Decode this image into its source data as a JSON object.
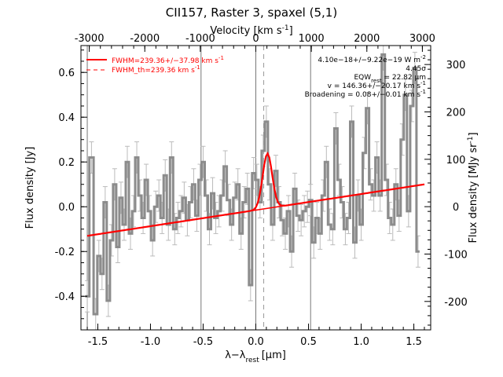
{
  "chart_data": {
    "type": "line",
    "title": "CII157, Raster 3, spaxel (5,1)",
    "xlabel_main": "λ−λ",
    "xlabel_sub": "rest",
    "xlabel_unit": "[μm]",
    "ylabel_left": "Flux density [Jy]",
    "ylabel_right": "Flux density [MJy sr",
    "ylabel_right_sup": "-1",
    "ylabel_right_end": "]",
    "xlabel_top": "Velocity [km s",
    "xlabel_top_sup": "-1",
    "xlabel_top_end": "]",
    "xlim": [
      -1.66,
      1.66
    ],
    "ylim": [
      -0.55,
      0.72
    ],
    "ylim_right": [
      -260,
      340
    ],
    "vlim_top": [
      -3150,
      3150
    ],
    "x_ticks": [
      "-1.5",
      "-1.0",
      "-0.5",
      "0.0",
      "0.5",
      "1.0",
      "1.5"
    ],
    "x_tick_values": [
      -1.5,
      -1.0,
      -0.5,
      0.0,
      0.5,
      1.0,
      1.5
    ],
    "y_ticks": [
      "-0.4",
      "-0.2",
      "0.0",
      "0.2",
      "0.4",
      "0.6"
    ],
    "y_tick_values": [
      -0.4,
      -0.2,
      0.0,
      0.2,
      0.4,
      0.6
    ],
    "yr_ticks": [
      "-200",
      "-100",
      "0",
      "100",
      "200",
      "300"
    ],
    "yr_tick_values": [
      -200,
      -100,
      0,
      100,
      200,
      300
    ],
    "top_ticks": [
      "-3000",
      "-2000",
      "-1000",
      "0",
      "1000",
      "2000",
      "3000"
    ],
    "top_tick_values": [
      -3000,
      -2000,
      -1000,
      0,
      1000,
      2000,
      3000
    ],
    "vlines_solid": [
      -1.6,
      -0.52,
      0.0,
      0.52
    ],
    "vline_dashed": 0.075,
    "legend": [
      {
        "label": "FWHM=239.36+/−37.98 km s",
        "sup": "-1",
        "style": "solid",
        "color": "#ff0000"
      },
      {
        "label": "FWHM_th=239.36 km s",
        "sup": "-1",
        "style": "dashed",
        "color": "#ff0000"
      }
    ],
    "annotations": [
      {
        "text": "4.10e−18+/−9.22e−19 W m",
        "sup": "-2"
      },
      {
        "text": "4.45σ",
        "sup": ""
      },
      {
        "text": "EQW",
        "sub": "rest",
        "rest": " = 22.82 μm",
        "sup": ""
      },
      {
        "text": "v = 146.36+/−20.17 km s",
        "sup": "-1"
      },
      {
        "text": "Broadening = 0.08+/−0.01 km s",
        "sup": "-1"
      }
    ],
    "series": [
      {
        "name": "spectrum",
        "color": "#8c8c8c",
        "x": [
          -1.6,
          -1.56,
          -1.52,
          -1.49,
          -1.46,
          -1.43,
          -1.4,
          -1.37,
          -1.34,
          -1.31,
          -1.28,
          -1.25,
          -1.22,
          -1.19,
          -1.16,
          -1.13,
          -1.1,
          -1.07,
          -1.04,
          -1.01,
          -0.98,
          -0.95,
          -0.92,
          -0.89,
          -0.86,
          -0.83,
          -0.8,
          -0.77,
          -0.74,
          -0.71,
          -0.68,
          -0.65,
          -0.62,
          -0.59,
          -0.56,
          -0.53,
          -0.5,
          -0.47,
          -0.44,
          -0.41,
          -0.38,
          -0.35,
          -0.32,
          -0.29,
          -0.26,
          -0.23,
          -0.2,
          -0.17,
          -0.14,
          -0.11,
          -0.08,
          -0.05,
          -0.02,
          0.01,
          0.04,
          0.07,
          0.1,
          0.13,
          0.16,
          0.19,
          0.22,
          0.25,
          0.28,
          0.31,
          0.34,
          0.37,
          0.4,
          0.43,
          0.46,
          0.49,
          0.52,
          0.55,
          0.58,
          0.61,
          0.64,
          0.67,
          0.7,
          0.73,
          0.76,
          0.79,
          0.82,
          0.85,
          0.88,
          0.91,
          0.94,
          0.97,
          1.0,
          1.03,
          1.06,
          1.09,
          1.12,
          1.15,
          1.18,
          1.21,
          1.24,
          1.27,
          1.3,
          1.33,
          1.36,
          1.39,
          1.42,
          1.45,
          1.48,
          1.51,
          1.54
        ],
        "y": [
          -0.4,
          0.22,
          -0.48,
          -0.22,
          -0.3,
          0.02,
          -0.42,
          -0.15,
          0.1,
          -0.18,
          0.04,
          -0.08,
          0.2,
          -0.12,
          -0.02,
          0.22,
          0.05,
          -0.05,
          0.12,
          -0.02,
          -0.15,
          0.0,
          0.05,
          -0.05,
          0.14,
          -0.08,
          0.22,
          -0.1,
          -0.05,
          -0.02,
          0.04,
          -0.06,
          0.02,
          0.1,
          -0.04,
          0.12,
          0.2,
          0.05,
          -0.1,
          0.06,
          -0.05,
          -0.02,
          0.05,
          0.18,
          0.03,
          -0.08,
          0.04,
          0.1,
          -0.12,
          0.02,
          0.08,
          -0.35,
          0.15,
          0.12,
          0.02,
          0.25,
          0.38,
          0.1,
          -0.08,
          0.16,
          0.02,
          -0.06,
          -0.12,
          -0.02,
          -0.2,
          0.08,
          -0.04,
          -0.06,
          -0.02,
          0.0,
          0.03,
          -0.16,
          -0.05,
          -0.12,
          0.05,
          0.2,
          -0.08,
          -0.1,
          0.35,
          0.12,
          0.02,
          -0.1,
          -0.05,
          0.38,
          -0.16,
          0.05,
          -0.08,
          0.24,
          0.44,
          0.1,
          0.05,
          0.22,
          0.05,
          0.68,
          0.12,
          -0.05,
          -0.08,
          0.1,
          -0.04,
          0.3,
          0.5,
          -0.02,
          0.45,
          0.62,
          -0.2
        ],
        "err": 0.07
      },
      {
        "name": "fit",
        "color": "#ff0000",
        "continuum_start": [
          -1.6,
          -0.13
        ],
        "continuum_end": [
          1.6,
          0.1
        ],
        "line_center": 0.11,
        "line_amplitude": 0.245,
        "line_sigma": 0.045
      }
    ]
  }
}
